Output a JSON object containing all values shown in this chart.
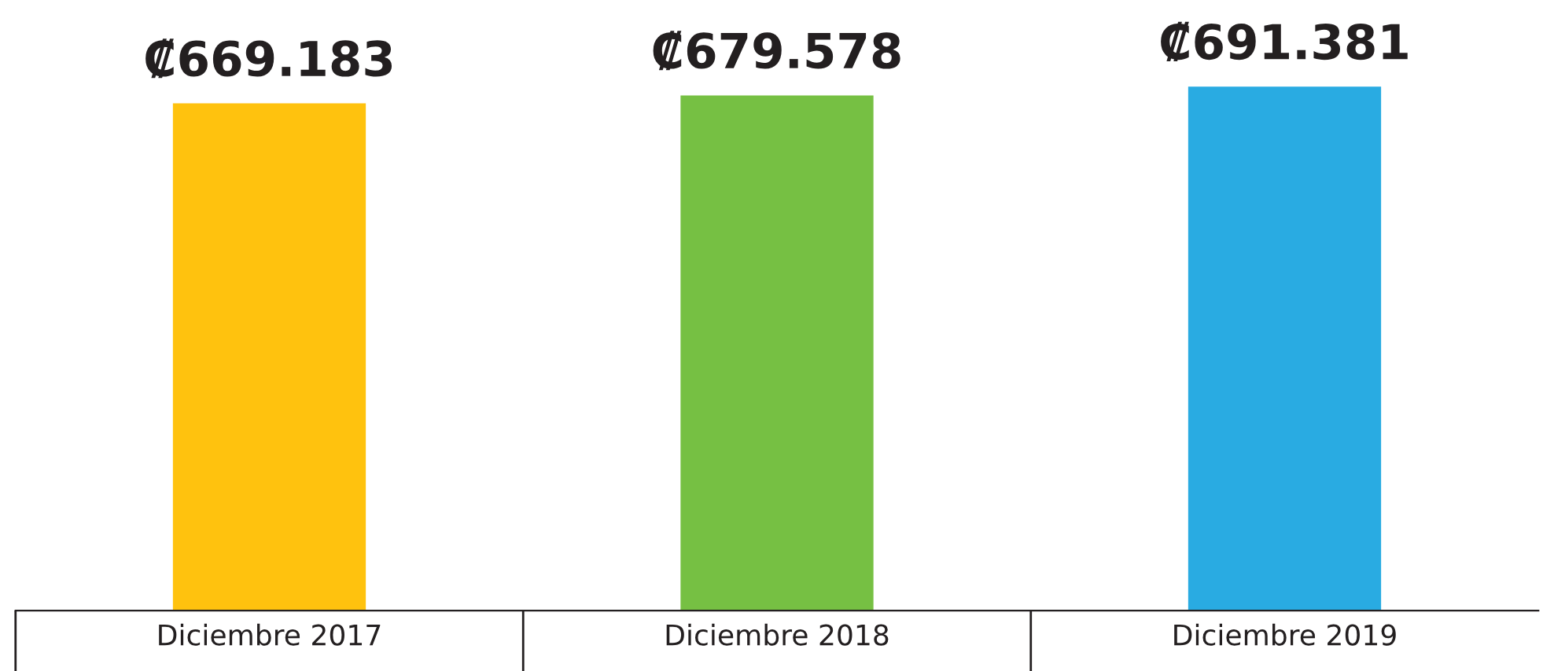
{
  "chart_data": {
    "type": "bar",
    "categories": [
      "Diciembre 2017",
      "Diciembre 2018",
      "Diciembre 2019"
    ],
    "values": [
      669183,
      679578,
      691381
    ],
    "colors": [
      "#ffc20e",
      "#76c043",
      "#29abe2"
    ],
    "value_labels": [
      "₡669.183",
      "₡679.578",
      "₡691.381"
    ],
    "tick_labels": "x",
    "grid": false,
    "legend": false
  }
}
